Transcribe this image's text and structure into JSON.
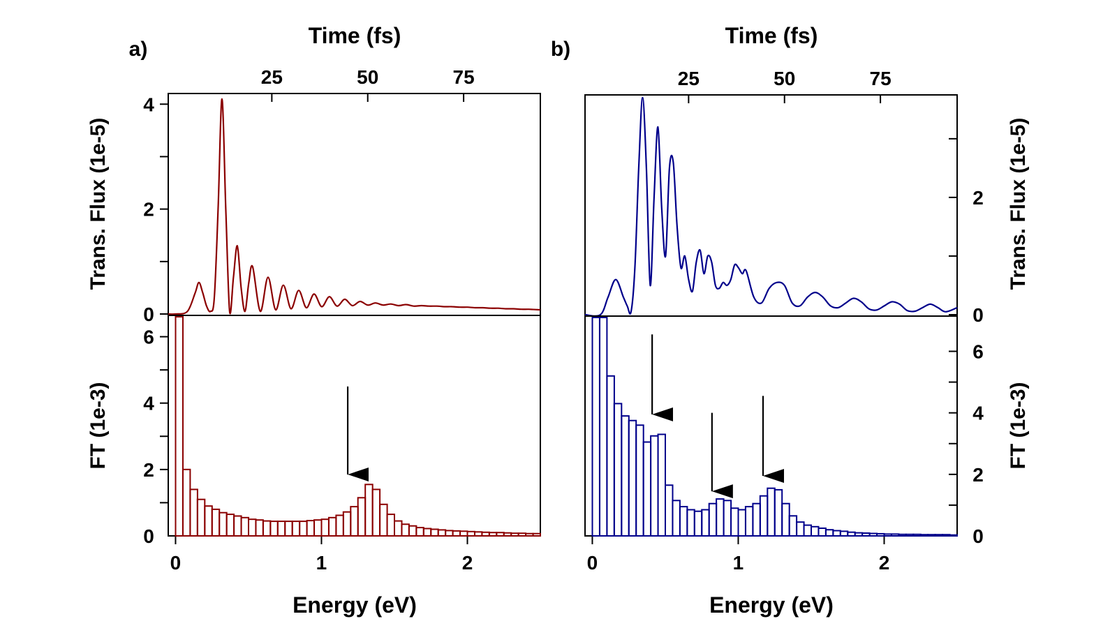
{
  "chart_data": [
    {
      "id": "a",
      "type": "line",
      "panel_label": "a)",
      "top_axis_label": "Time (fs)",
      "top_tick_labels": [
        "25",
        "50",
        "75"
      ],
      "top_ticks": [
        25,
        50,
        75
      ],
      "time_range": [
        -2,
        95
      ],
      "flux_ylabel": "Trans. Flux (1e-5)",
      "flux_ylim": [
        0,
        4.15
      ],
      "flux_tick_labels": [
        "0",
        "2",
        "4"
      ],
      "flux_ticks": [
        0,
        1,
        2,
        3,
        4
      ],
      "flux_labeled": [
        0,
        2,
        4
      ],
      "flux_axis_side": "left",
      "color": "#8b0000",
      "flux_series": {
        "t": [
          -2,
          0,
          3,
          5,
          6,
          7,
          8,
          9,
          10,
          11,
          12,
          13,
          14,
          15,
          16,
          17,
          18,
          19,
          20,
          22,
          24,
          26,
          28,
          30,
          32,
          34,
          36,
          38,
          40,
          42,
          44,
          46,
          48,
          50,
          52,
          54,
          56,
          58,
          60,
          62,
          64,
          66,
          68,
          70,
          72,
          74,
          76,
          78,
          80,
          82,
          84,
          86,
          88,
          90,
          92,
          95
        ],
        "y": [
          0,
          0,
          0.05,
          0.4,
          0.6,
          0.4,
          0.15,
          0.05,
          0.3,
          2.0,
          4.1,
          2.0,
          0.05,
          0.7,
          1.3,
          0.5,
          0.05,
          0.6,
          0.9,
          0.05,
          0.7,
          0.08,
          0.55,
          0.1,
          0.45,
          0.12,
          0.38,
          0.14,
          0.33,
          0.15,
          0.28,
          0.16,
          0.24,
          0.17,
          0.21,
          0.17,
          0.19,
          0.16,
          0.18,
          0.15,
          0.16,
          0.15,
          0.15,
          0.14,
          0.14,
          0.13,
          0.13,
          0.12,
          0.12,
          0.11,
          0.11,
          0.1,
          0.1,
          0.09,
          0.09,
          0.08
        ]
      },
      "xlabel": "Energy (eV)",
      "energy_tick_labels": [
        "0",
        "1",
        "2"
      ],
      "energy_ticks": [
        0,
        1,
        2
      ],
      "energy_range": [
        -0.05,
        2.5
      ],
      "ft_ylabel": "FT (1e-3)",
      "ft_ylim": [
        0,
        6.6
      ],
      "ft_tick_labels": [
        "0",
        "2",
        "4",
        "6"
      ],
      "ft_ticks": [
        0,
        1,
        2,
        3,
        4,
        5,
        6
      ],
      "ft_labeled": [
        0,
        2,
        4,
        6
      ],
      "ft_axis_side": "left",
      "bin_width": 0.05,
      "ft_bars": [
        6.6,
        2.0,
        1.4,
        1.1,
        0.9,
        0.8,
        0.7,
        0.65,
        0.6,
        0.55,
        0.5,
        0.48,
        0.45,
        0.44,
        0.44,
        0.44,
        0.44,
        0.44,
        0.46,
        0.48,
        0.5,
        0.55,
        0.62,
        0.72,
        0.88,
        1.15,
        1.55,
        1.4,
        0.95,
        0.65,
        0.45,
        0.35,
        0.3,
        0.25,
        0.22,
        0.2,
        0.18,
        0.16,
        0.15,
        0.14,
        0.13,
        0.12,
        0.11,
        0.1,
        0.1,
        0.09,
        0.08,
        0.08,
        0.07,
        0.07
      ],
      "arrows": [
        {
          "energy": 1.18,
          "from": 4.5,
          "to": 1.85
        }
      ]
    },
    {
      "id": "b",
      "type": "line",
      "panel_label": "b)",
      "top_axis_label": "Time (fs)",
      "top_tick_labels": [
        "25",
        "50",
        "75"
      ],
      "top_ticks": [
        25,
        50,
        75
      ],
      "time_range": [
        -2,
        95
      ],
      "flux_ylabel": "Trans. Flux (1e-5)",
      "flux_ylim": [
        0,
        3.7
      ],
      "flux_tick_labels": [
        "0",
        "2"
      ],
      "flux_ticks": [
        0,
        1,
        2,
        3
      ],
      "flux_labeled": [
        0,
        2
      ],
      "flux_axis_side": "right",
      "color": "#00008b",
      "flux_series": {
        "t": [
          -2,
          2,
          4,
          6,
          8,
          9,
          10,
          11,
          12,
          13,
          14,
          15,
          16,
          17,
          18,
          19,
          20,
          21,
          22,
          23,
          24,
          25,
          26,
          27,
          28,
          29,
          30,
          31,
          32,
          33,
          34,
          35,
          36,
          37,
          38,
          39,
          40,
          42,
          44,
          46,
          48,
          50,
          52,
          54,
          56,
          58,
          60,
          62,
          64,
          66,
          68,
          70,
          72,
          74,
          76,
          78,
          80,
          82,
          84,
          86,
          88,
          90,
          92,
          95
        ],
        "y": [
          0,
          0,
          0.3,
          0.6,
          0.3,
          0.15,
          0.05,
          0.8,
          2.5,
          3.7,
          2.5,
          0.5,
          2.0,
          3.2,
          1.8,
          1.0,
          2.5,
          2.6,
          1.5,
          0.8,
          1.0,
          0.6,
          0.4,
          0.9,
          1.1,
          0.7,
          1.0,
          0.9,
          0.5,
          0.45,
          0.55,
          0.5,
          0.6,
          0.85,
          0.8,
          0.7,
          0.75,
          0.3,
          0.2,
          0.45,
          0.55,
          0.5,
          0.2,
          0.15,
          0.3,
          0.38,
          0.3,
          0.15,
          0.12,
          0.2,
          0.28,
          0.22,
          0.1,
          0.08,
          0.15,
          0.22,
          0.18,
          0.07,
          0.06,
          0.12,
          0.18,
          0.12,
          0.05,
          0.12
        ]
      },
      "xlabel": "Energy (eV)",
      "energy_tick_labels": [
        "0",
        "1",
        "2"
      ],
      "energy_ticks": [
        0,
        1,
        2
      ],
      "energy_range": [
        -0.05,
        2.5
      ],
      "ft_ylabel": "FT (1e-3)",
      "ft_ylim": [
        0,
        7.1
      ],
      "ft_tick_labels": [
        "0",
        "2",
        "4",
        "6"
      ],
      "ft_ticks": [
        0,
        1,
        2,
        3,
        4,
        5,
        6
      ],
      "ft_labeled": [
        0,
        2,
        4,
        6
      ],
      "ft_axis_side": "right",
      "bin_width": 0.05,
      "ft_bars": [
        7.1,
        7.1,
        5.2,
        4.3,
        3.9,
        3.75,
        3.6,
        3.05,
        3.25,
        3.3,
        1.65,
        1.15,
        0.95,
        0.85,
        0.8,
        0.85,
        1.05,
        1.2,
        1.15,
        0.9,
        0.85,
        0.95,
        1.05,
        1.3,
        1.55,
        1.5,
        1.05,
        0.65,
        0.45,
        0.35,
        0.3,
        0.25,
        0.2,
        0.17,
        0.15,
        0.12,
        0.1,
        0.09,
        0.08,
        0.07,
        0.06,
        0.06,
        0.05,
        0.05,
        0.05,
        0.04,
        0.04,
        0.04,
        0.04,
        0.03
      ],
      "arrows": [
        {
          "energy": 0.41,
          "from": 6.55,
          "to": 3.95
        },
        {
          "energy": 0.82,
          "from": 4.0,
          "to": 1.45
        },
        {
          "energy": 1.17,
          "from": 4.55,
          "to": 1.95
        }
      ]
    }
  ]
}
